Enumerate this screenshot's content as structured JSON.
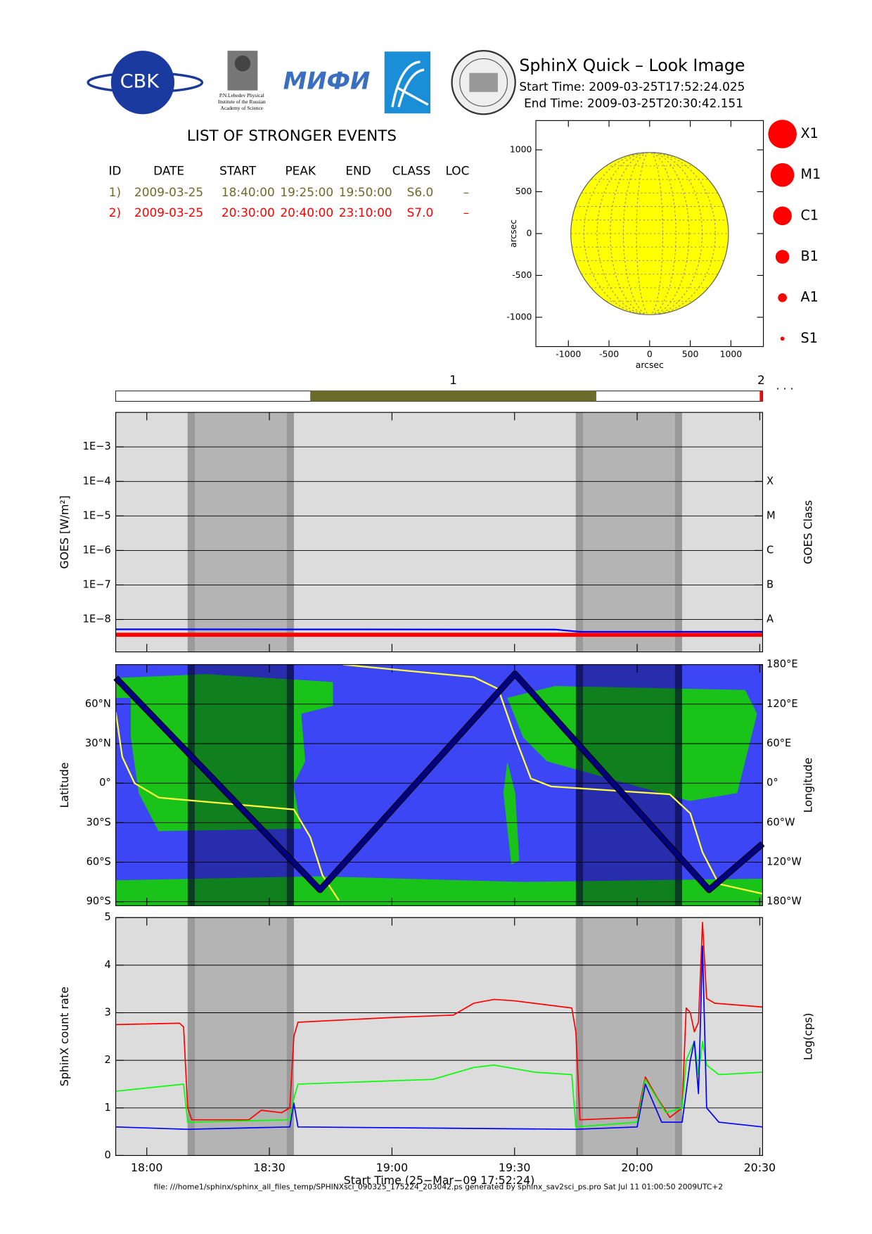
{
  "header": {
    "title": "SphinX Quick – Look Image",
    "start_time": "Start Time: 2009-03-25T17:52:24.025",
    "end_time": "End Time: 2009-03-25T20:30:42.151",
    "logo_cbk": "CBK",
    "logo_lebedev": [
      "P.N.Lebedev Physical",
      "Institute of the Russian",
      "Academy of Science"
    ],
    "logo_mifi": "МИФИ"
  },
  "events": {
    "title": "LIST OF STRONGER EVENTS",
    "columns": [
      "ID",
      "DATE",
      "START",
      "PEAK",
      "END",
      "CLASS",
      "LOC"
    ],
    "rows": [
      [
        "1)",
        "2009-03-25",
        "18:40:00",
        "19:25:00",
        "19:50:00",
        "S6.0",
        "–"
      ],
      [
        "2)",
        "2009-03-25",
        "20:30:00",
        "20:40:00",
        "23:10:00",
        "S7.0",
        "–"
      ]
    ],
    "row_colors": [
      "#6b6b2a",
      "#ff0000"
    ]
  },
  "flare_classes": [
    "X1",
    "M1",
    "C1",
    "B1",
    "A1",
    "S1"
  ],
  "chart_data": [
    {
      "type": "disk",
      "x_label": "arcsec",
      "y_label": "arcsec",
      "xlim": [
        -1400,
        1400
      ],
      "ylim": [
        -1350,
        1350
      ],
      "xticks": [
        -1000,
        -500,
        0,
        500,
        1000
      ],
      "yticks": [
        -1000,
        -500,
        0,
        500,
        1000
      ],
      "disk_radius": 970,
      "color": "#ffff00"
    },
    {
      "type": "timeline",
      "xlim": [
        "17:52:24",
        "20:30:42"
      ],
      "labels": [
        "1",
        "2"
      ],
      "more": "· · ·",
      "colors": [
        "#6b6b2a",
        "#ff0000"
      ]
    },
    {
      "type": "line",
      "log_scale": true,
      "y_label": "GOES [W/m²]",
      "y2_label": "GOES Class",
      "xlim": [
        "17:52:24",
        "20:30:42"
      ],
      "ylim": [
        1.15e-09,
        0.01
      ],
      "yticks": [
        {
          "value": 0.001,
          "label": "1E−3"
        },
        {
          "value": 0.0001,
          "label": "1E−4"
        },
        {
          "value": 1e-05,
          "label": "1E−5"
        },
        {
          "value": 1e-06,
          "label": "1E−6"
        },
        {
          "value": 1e-07,
          "label": "1E−7"
        },
        {
          "value": 1e-08,
          "label": "1E−8"
        }
      ],
      "y2lim": [
        1.15e-09,
        0.01
      ],
      "y2ticks": [
        {
          "value": 0.0001,
          "label": "X"
        },
        {
          "value": 1e-05,
          "label": "M"
        },
        {
          "value": 1e-06,
          "label": "C"
        },
        {
          "value": 1e-07,
          "label": "B"
        },
        {
          "value": 1e-08,
          "label": "A"
        }
      ],
      "shadow_intervals": [
        [
          "18:10",
          "18:36"
        ],
        [
          "19:45",
          "20:11"
        ]
      ],
      "grid": true,
      "series": [
        {
          "color": "#ff0000",
          "width": 5,
          "x": [
            "17:52:24",
            "20:30:42"
          ],
          "values": [
            3.6e-09,
            3.6e-09
          ]
        },
        {
          "color": "#0000ff",
          "width": 2,
          "x": [
            "17:52:24",
            "19:40",
            "19:46",
            "20:30:42"
          ],
          "values": [
            5.2e-09,
            5.1e-09,
            4.4e-09,
            4.4e-09
          ]
        }
      ]
    },
    {
      "type": "map",
      "y_label": "Latitude",
      "y2_label": "Longitude",
      "xlim": [
        "17:52:24",
        "20:30:42"
      ],
      "ylim": [
        -93,
        90
      ],
      "y2lim": [
        -186,
        180
      ],
      "yticks": [
        {
          "value": -90,
          "label": "90°S"
        },
        {
          "value": -60,
          "label": "60°S"
        },
        {
          "value": -30,
          "label": "30°S"
        },
        {
          "value": 0,
          "label": "0°"
        },
        {
          "value": 30,
          "label": "30°N"
        },
        {
          "value": 60,
          "label": "60°N"
        }
      ],
      "y2ticks": [
        {
          "value": -180,
          "label": "180°W"
        },
        {
          "value": -120,
          "label": "120°W"
        },
        {
          "value": -60,
          "label": "60°W"
        },
        {
          "value": 0,
          "label": "0°"
        },
        {
          "value": 60,
          "label": "60°E"
        },
        {
          "value": 120,
          "label": "120°E"
        },
        {
          "value": 180,
          "label": "180°E"
        }
      ],
      "shadow_intervals": [
        [
          "18:10",
          "18:36"
        ],
        [
          "19:45",
          "20:11"
        ]
      ],
      "grid": true,
      "series": [
        {
          "color": "#ffff40",
          "axis": "y2",
          "width": 2,
          "x": [
            "17:52:24",
            "17:54",
            "17:57",
            "18:03",
            "18:36",
            "18:40",
            "18:43",
            "18:47",
            null,
            "18:48",
            "19:20",
            "19:26",
            "19:30",
            "19:34",
            "19:39",
            "20:08",
            "20:13",
            "20:16",
            "20:20",
            "20:30:42"
          ],
          "values": [
            108,
            40,
            0,
            -22,
            -40,
            -82,
            -140,
            -178,
            null,
            180,
            161,
            143,
            72,
            7,
            -5,
            -17,
            -46,
            -105,
            -153,
            -168
          ]
        },
        {
          "color": "#000080",
          "width": 6,
          "x": [
            "17:52:24",
            "18:42:24",
            "19:30:06",
            "20:17:36",
            "20:30:42"
          ],
          "values": [
            80,
            -81,
            83,
            -81,
            -46
          ]
        }
      ]
    },
    {
      "type": "line",
      "y_label": "SphinX count rate",
      "y2_label": "Log(cps)",
      "x_label": "Start Time (25−Mar−09 17:52:24)",
      "xlim": [
        "17:52:24",
        "20:30:42"
      ],
      "ylim": [
        0,
        5
      ],
      "xticks": [
        "18:00",
        "18:30",
        "19:00",
        "19:30",
        "20:00",
        "20:30"
      ],
      "yticks": [
        0,
        1,
        2,
        3,
        4,
        5
      ],
      "shadow_intervals": [
        [
          "18:10",
          "18:36"
        ],
        [
          "19:45",
          "20:11"
        ]
      ],
      "grid": true,
      "series": [
        {
          "color": "#ff0000",
          "width": 1.5,
          "x": [
            "17:52:24",
            "18:08",
            "18:09",
            "18:10",
            "18:11",
            "18:25",
            "18:28",
            "18:33",
            "18:35",
            "18:36",
            "18:37",
            "19:00",
            "19:15",
            "19:20",
            "19:25",
            "19:30",
            "19:44",
            "19:45",
            "19:46",
            "20:00",
            "20:02",
            "20:05",
            "20:08",
            "20:11",
            "20:12",
            "20:13",
            "20:14",
            "20:15",
            "20:16",
            "20:17",
            "20:19",
            "20:30:42"
          ],
          "values": [
            2.75,
            2.78,
            2.7,
            1.0,
            0.75,
            0.75,
            0.95,
            0.9,
            1.0,
            2.5,
            2.8,
            2.9,
            2.95,
            3.2,
            3.28,
            3.25,
            3.1,
            2.6,
            0.75,
            0.8,
            1.65,
            1.2,
            0.8,
            1.0,
            3.1,
            3.0,
            2.6,
            2.8,
            4.9,
            3.3,
            3.2,
            3.12
          ]
        },
        {
          "color": "#00ff00",
          "width": 1.5,
          "x": [
            "17:52:24",
            "18:09",
            "18:10",
            "18:35",
            "18:36",
            "18:37",
            "19:10",
            "19:20",
            "19:25",
            "19:35",
            "19:44",
            "19:45",
            "20:00",
            "20:02",
            "20:07",
            "20:11",
            "20:12",
            "20:14",
            "20:15",
            "20:16",
            "20:17",
            "20:20",
            "20:30:42"
          ],
          "values": [
            1.35,
            1.5,
            0.7,
            0.75,
            1.2,
            1.5,
            1.6,
            1.85,
            1.9,
            1.75,
            1.7,
            0.6,
            0.7,
            1.6,
            0.9,
            1.0,
            2.0,
            2.4,
            1.7,
            2.4,
            1.9,
            1.7,
            1.75
          ]
        },
        {
          "color": "#0000ff",
          "width": 1.5,
          "x": [
            "17:52:24",
            "18:10",
            "18:35",
            "18:36",
            "18:37",
            "19:45",
            "20:00",
            "20:02",
            "20:06",
            "20:11",
            "20:13",
            "20:14",
            "20:15",
            "20:16",
            "20:17",
            "20:20",
            "20:30:42"
          ],
          "values": [
            0.6,
            0.55,
            0.6,
            1.1,
            0.6,
            0.55,
            0.6,
            1.5,
            0.7,
            0.7,
            2.0,
            2.4,
            1.3,
            4.4,
            1.0,
            0.7,
            0.6
          ]
        }
      ]
    }
  ],
  "footer": "file: ///home1/sphinx/sphinx_all_files_temp/SPHINXsci_090325_175224_203042.ps generated by sphinx_sav2sci_ps.pro Sat Jul 11 01:00:50 2009UTC+2"
}
